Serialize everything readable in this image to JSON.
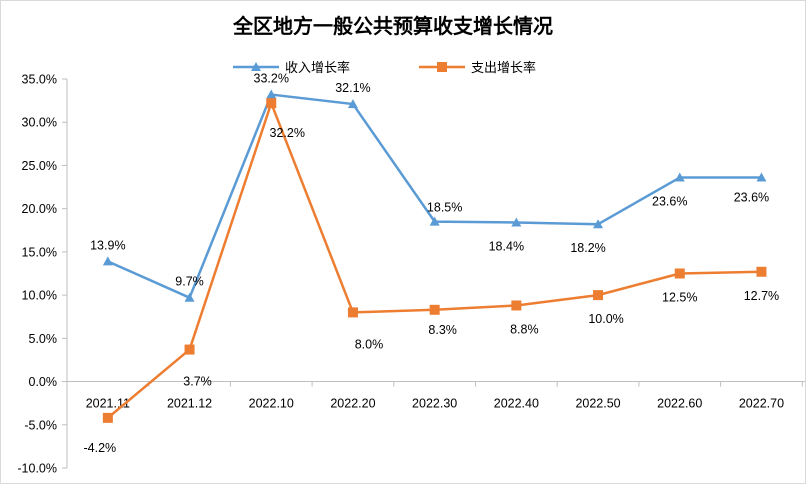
{
  "chart_data": {
    "type": "line",
    "title": "全区地方一般公共预算收支增长情况",
    "xlabel": "",
    "ylabel": "",
    "categories": [
      "2021.11",
      "2021.12",
      "2022.10",
      "2022.20",
      "2022.30",
      "2022.40",
      "2022.50",
      "2022.60",
      "2022.70"
    ],
    "y_ticks": [
      "35.0%",
      "30.0%",
      "25.0%",
      "20.0%",
      "15.0%",
      "10.0%",
      "5.0%",
      "0.0%",
      "-5.0%",
      "-10.0%"
    ],
    "ylim": [
      -10,
      35
    ],
    "y_unit": "%",
    "grid": false,
    "legend_position": "top",
    "series": [
      {
        "name": "收入增长率",
        "color": "#5b9bd5",
        "marker": "triangle",
        "values": [
          13.9,
          9.7,
          33.2,
          32.1,
          18.5,
          18.4,
          18.2,
          23.6,
          23.6
        ],
        "labels": [
          "13.9%",
          "9.7%",
          "33.2%",
          "32.1%",
          "18.5%",
          "18.4%",
          "18.2%",
          "23.6%",
          "23.6%"
        ]
      },
      {
        "name": "支出增长率",
        "color": "#ed7d31",
        "marker": "square",
        "values": [
          -4.2,
          3.7,
          32.2,
          8.0,
          8.3,
          8.8,
          10.0,
          12.5,
          12.7
        ],
        "labels": [
          "-4.2%",
          "3.7%",
          "32.2%",
          "8.0%",
          "8.3%",
          "8.8%",
          "10.0%",
          "12.5%",
          "12.7%"
        ]
      }
    ]
  }
}
